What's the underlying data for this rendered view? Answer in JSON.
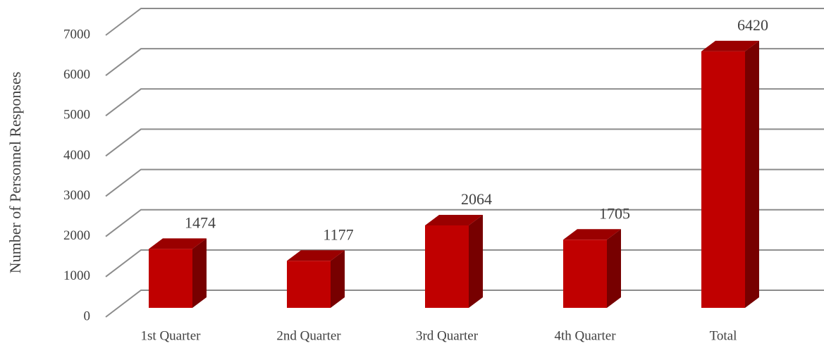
{
  "chart_data": {
    "type": "bar3d",
    "y_axis_label": "Number of Personnel Responses",
    "categories": [
      "1st Quarter",
      "2nd Quarter",
      "3rd Quarter",
      "4th Quarter",
      "Total"
    ],
    "values": [
      1474,
      1177,
      2064,
      1705,
      6420
    ],
    "color": "#c00000",
    "ylim": [
      0,
      7000
    ],
    "yticks": [
      0,
      1000,
      2000,
      3000,
      4000,
      5000,
      6000,
      7000
    ],
    "grid": true
  }
}
